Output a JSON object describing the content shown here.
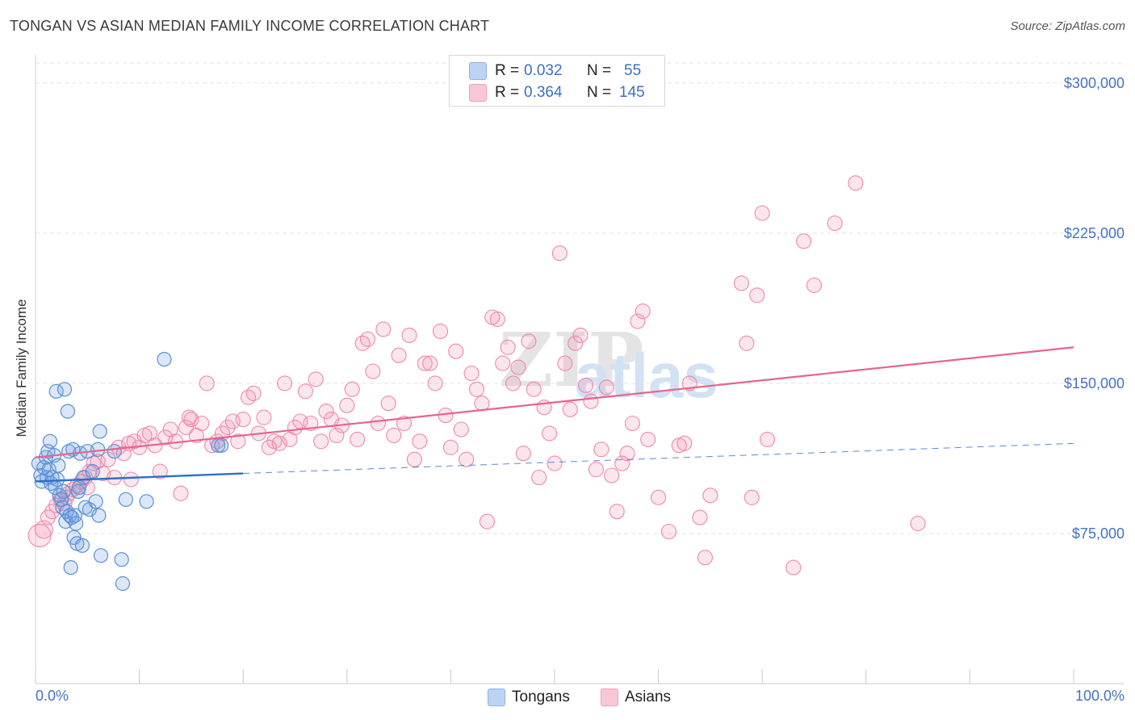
{
  "header": {
    "title": "TONGAN VS ASIAN MEDIAN FAMILY INCOME CORRELATION CHART",
    "source": "Source: ZipAtlas.com"
  },
  "watermark": {
    "zip": "ZIP",
    "atlas": "atlas"
  },
  "legend": {
    "rows": [
      {
        "r_label": "R =",
        "r_value": "0.032",
        "n_label": "N =",
        "n_value": "55"
      },
      {
        "r_label": "R =",
        "r_value": "0.364",
        "n_label": "N =",
        "n_value": "145"
      }
    ]
  },
  "bottom_legend": {
    "tongans": "Tongans",
    "asians": "Asians"
  },
  "chart_data": {
    "type": "scatter",
    "title": "TONGAN VS ASIAN MEDIAN FAMILY INCOME CORRELATION CHART",
    "xlabel": "",
    "ylabel": "Median Family Income",
    "x_tick_labels": [
      "0.0%",
      "100.0%"
    ],
    "y_tick_labels": [
      "$75,000",
      "$150,000",
      "$225,000",
      "$300,000"
    ],
    "y_ticks": [
      75000,
      150000,
      225000,
      300000
    ],
    "xlim": [
      0,
      100
    ],
    "ylim": [
      0,
      310000
    ],
    "grid": true,
    "colors": {
      "tongans": "#6a9bd8",
      "tongans_line": "#2f6fc8",
      "asians": "#ee88a8",
      "asians_line": "#e8638e",
      "axis_text": "#4472c4"
    },
    "series": [
      {
        "name": "Tongans",
        "R": 0.032,
        "N": 55,
        "trend": {
          "x_start": 0,
          "y_start": 101000,
          "x_solid_end": 20,
          "y_solid_end": 105000,
          "x_end": 100,
          "y_end": 120000
        },
        "points": [
          [
            0.3,
            110000
          ],
          [
            0.5,
            104000
          ],
          [
            0.6,
            101000
          ],
          [
            0.8,
            108000
          ],
          [
            1.0,
            113000
          ],
          [
            1.1,
            103000
          ],
          [
            1.2,
            116000
          ],
          [
            1.3,
            107000
          ],
          [
            1.4,
            121000
          ],
          [
            1.5,
            100000
          ],
          [
            1.6,
            103000
          ],
          [
            1.8,
            114000
          ],
          [
            1.9,
            98000
          ],
          [
            2.0,
            146000
          ],
          [
            2.1,
            102000
          ],
          [
            2.2,
            109000
          ],
          [
            2.3,
            94000
          ],
          [
            2.5,
            92000
          ],
          [
            2.6,
            88000
          ],
          [
            2.7,
            96000
          ],
          [
            2.8,
            147000
          ],
          [
            2.9,
            81000
          ],
          [
            3.0,
            86000
          ],
          [
            3.1,
            136000
          ],
          [
            3.2,
            116000
          ],
          [
            3.3,
            84000
          ],
          [
            3.4,
            58000
          ],
          [
            3.5,
            83000
          ],
          [
            3.6,
            117000
          ],
          [
            3.7,
            73000
          ],
          [
            3.8,
            84000
          ],
          [
            3.9,
            80000
          ],
          [
            4.0,
            70000
          ],
          [
            4.1,
            96000
          ],
          [
            4.2,
            98000
          ],
          [
            4.3,
            115000
          ],
          [
            4.5,
            69000
          ],
          [
            4.6,
            103000
          ],
          [
            4.8,
            88000
          ],
          [
            5.0,
            116000
          ],
          [
            5.2,
            87000
          ],
          [
            5.5,
            106000
          ],
          [
            5.8,
            91000
          ],
          [
            6.0,
            117000
          ],
          [
            6.1,
            84000
          ],
          [
            6.2,
            126000
          ],
          [
            6.3,
            64000
          ],
          [
            7.6,
            116000
          ],
          [
            8.3,
            62000
          ],
          [
            8.4,
            50000
          ],
          [
            8.7,
            92000
          ],
          [
            10.7,
            91000
          ],
          [
            12.4,
            162000
          ],
          [
            17.6,
            119000
          ],
          [
            17.9,
            119000
          ]
        ]
      },
      {
        "name": "Asians",
        "R": 0.364,
        "N": 145,
        "trend": {
          "x_start": 0,
          "y_start": 113000,
          "x_end": 100,
          "y_end": 168000
        },
        "points": [
          [
            0.4,
            74000
          ],
          [
            0.8,
            77000
          ],
          [
            1.2,
            83000
          ],
          [
            1.6,
            86000
          ],
          [
            2.0,
            89000
          ],
          [
            2.4,
            92000
          ],
          [
            2.8,
            90000
          ],
          [
            3.2,
            95000
          ],
          [
            3.6,
            97000
          ],
          [
            4.0,
            99000
          ],
          [
            4.4,
            101000
          ],
          [
            4.8,
            103000
          ],
          [
            5.2,
            106000
          ],
          [
            5.6,
            110000
          ],
          [
            6.0,
            111000
          ],
          [
            6.5,
            105000
          ],
          [
            7.0,
            112000
          ],
          [
            7.6,
            103000
          ],
          [
            8.0,
            118000
          ],
          [
            8.5,
            115000
          ],
          [
            9.0,
            120000
          ],
          [
            9.5,
            121000
          ],
          [
            10.0,
            118000
          ],
          [
            10.5,
            124000
          ],
          [
            11.0,
            125000
          ],
          [
            11.5,
            119000
          ],
          [
            12.0,
            106000
          ],
          [
            12.5,
            123000
          ],
          [
            13.0,
            127000
          ],
          [
            13.5,
            121000
          ],
          [
            14.0,
            95000
          ],
          [
            14.5,
            128000
          ],
          [
            15.0,
            132000
          ],
          [
            15.5,
            124000
          ],
          [
            16.0,
            130000
          ],
          [
            16.5,
            150000
          ],
          [
            17.0,
            119000
          ],
          [
            17.5,
            121000
          ],
          [
            18.0,
            125000
          ],
          [
            18.5,
            128000
          ],
          [
            19.0,
            131000
          ],
          [
            19.5,
            121000
          ],
          [
            20.0,
            132000
          ],
          [
            20.5,
            143000
          ],
          [
            21.0,
            145000
          ],
          [
            21.5,
            125000
          ],
          [
            22.0,
            133000
          ],
          [
            22.5,
            118000
          ],
          [
            23.0,
            121000
          ],
          [
            23.5,
            120000
          ],
          [
            24.0,
            150000
          ],
          [
            24.5,
            122000
          ],
          [
            25.0,
            128000
          ],
          [
            25.5,
            131000
          ],
          [
            26.0,
            146000
          ],
          [
            26.5,
            130000
          ],
          [
            27.0,
            152000
          ],
          [
            27.5,
            121000
          ],
          [
            28.0,
            136000
          ],
          [
            28.5,
            132000
          ],
          [
            29.0,
            124000
          ],
          [
            29.5,
            129000
          ],
          [
            30.0,
            139000
          ],
          [
            30.5,
            147000
          ],
          [
            31.0,
            122000
          ],
          [
            31.5,
            170000
          ],
          [
            32.0,
            172000
          ],
          [
            32.5,
            156000
          ],
          [
            33.0,
            130000
          ],
          [
            33.5,
            177000
          ],
          [
            34.0,
            140000
          ],
          [
            34.5,
            124000
          ],
          [
            35.0,
            164000
          ],
          [
            35.5,
            130000
          ],
          [
            36.0,
            174000
          ],
          [
            36.5,
            112000
          ],
          [
            37.0,
            121000
          ],
          [
            37.5,
            160000
          ],
          [
            38.0,
            160000
          ],
          [
            38.5,
            150000
          ],
          [
            39.0,
            176000
          ],
          [
            39.5,
            134000
          ],
          [
            40.0,
            118000
          ],
          [
            40.5,
            166000
          ],
          [
            41.0,
            127000
          ],
          [
            41.5,
            112000
          ],
          [
            42.0,
            155000
          ],
          [
            42.5,
            147000
          ],
          [
            43.0,
            140000
          ],
          [
            43.5,
            81000
          ],
          [
            44.0,
            183000
          ],
          [
            44.5,
            182000
          ],
          [
            45.0,
            160000
          ],
          [
            45.5,
            168000
          ],
          [
            46.0,
            150000
          ],
          [
            46.5,
            158000
          ],
          [
            47.0,
            115000
          ],
          [
            47.5,
            171000
          ],
          [
            48.0,
            147000
          ],
          [
            48.5,
            103000
          ],
          [
            49.0,
            138000
          ],
          [
            49.5,
            125000
          ],
          [
            50.0,
            110000
          ],
          [
            50.5,
            215000
          ],
          [
            51.0,
            160000
          ],
          [
            51.5,
            137000
          ],
          [
            52.0,
            170000
          ],
          [
            52.5,
            174000
          ],
          [
            53.0,
            149000
          ],
          [
            53.5,
            141000
          ],
          [
            54.0,
            107000
          ],
          [
            54.5,
            117000
          ],
          [
            55.0,
            148000
          ],
          [
            55.5,
            104000
          ],
          [
            56.0,
            86000
          ],
          [
            56.5,
            110000
          ],
          [
            57.0,
            115000
          ],
          [
            57.5,
            130000
          ],
          [
            58.0,
            181000
          ],
          [
            58.5,
            186000
          ],
          [
            59.0,
            122000
          ],
          [
            60.0,
            93000
          ],
          [
            61.0,
            76000
          ],
          [
            62.0,
            119000
          ],
          [
            62.5,
            120000
          ],
          [
            63.0,
            150000
          ],
          [
            64.0,
            83000
          ],
          [
            64.5,
            63000
          ],
          [
            65.0,
            94000
          ],
          [
            68.0,
            200000
          ],
          [
            68.5,
            170000
          ],
          [
            69.0,
            93000
          ],
          [
            69.5,
            194000
          ],
          [
            70.0,
            235000
          ],
          [
            70.5,
            122000
          ],
          [
            73.0,
            58000
          ],
          [
            74.0,
            221000
          ],
          [
            75.0,
            199000
          ],
          [
            77.0,
            230000
          ],
          [
            79.0,
            250000
          ],
          [
            85.0,
            80000
          ],
          [
            3.0,
            93000
          ],
          [
            5.0,
            98000
          ],
          [
            9.2,
            102000
          ],
          [
            14.8,
            133000
          ]
        ]
      }
    ]
  }
}
